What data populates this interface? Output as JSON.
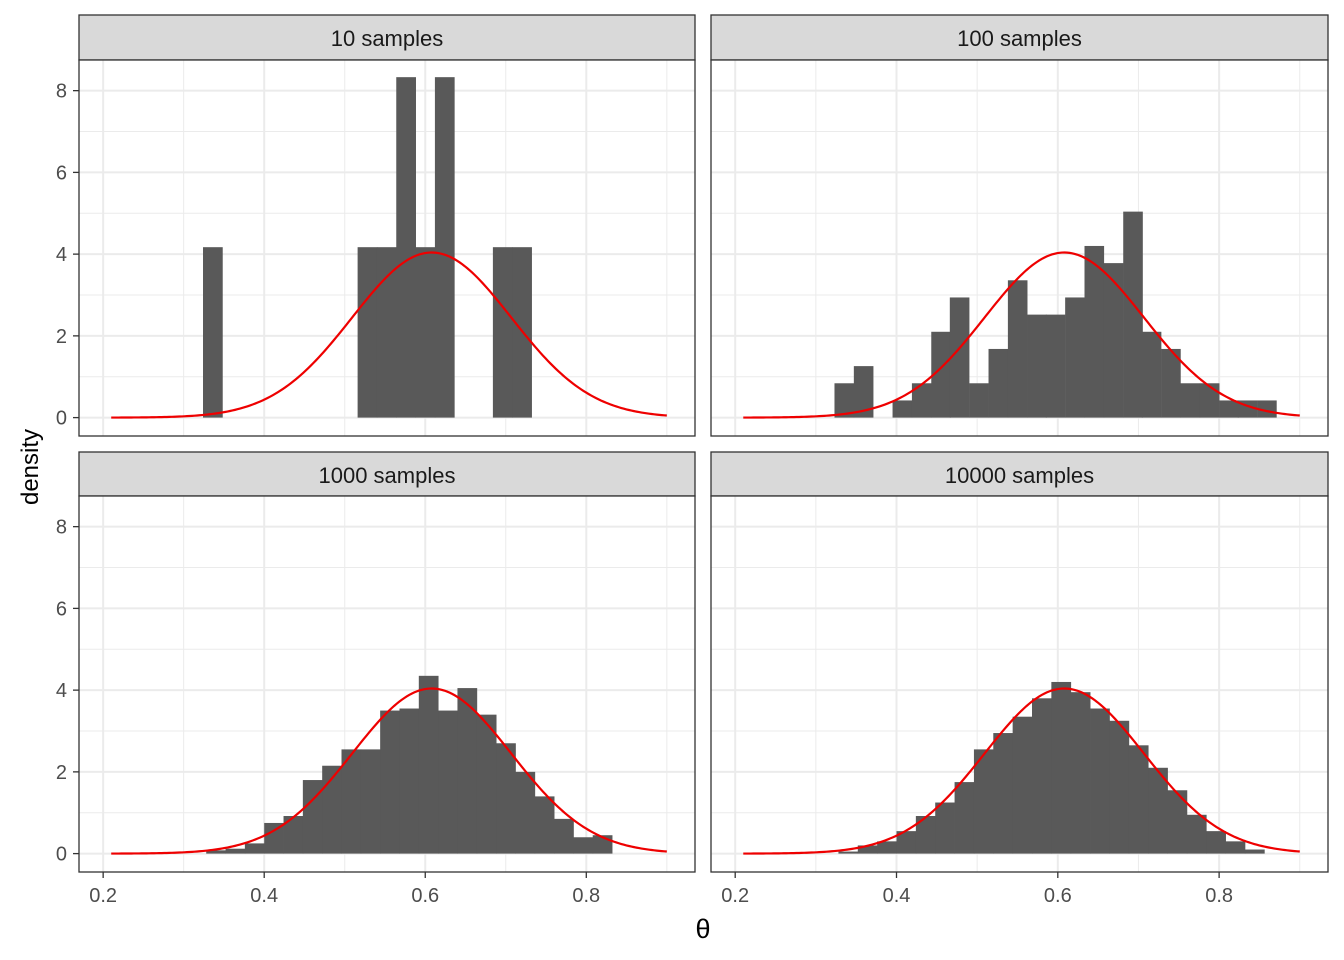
{
  "figure": {
    "xlabel": "θ",
    "ylabel": "density"
  },
  "colors": {
    "bar": "#595959",
    "curve": "#ee0000",
    "strip_fill": "#d9d9d9",
    "grid": "#ebebeb",
    "border": "#333333",
    "tick_text": "#4d4d4d"
  },
  "chart_data": [
    {
      "type": "bar",
      "panel": "10 samples",
      "title": "10 samples",
      "bin_width": 0.024,
      "bins": [
        [
          0.336,
          4.17
        ],
        [
          0.528,
          4.17
        ],
        [
          0.552,
          4.17
        ],
        [
          0.576,
          8.33
        ],
        [
          0.6,
          4.17
        ],
        [
          0.624,
          8.33
        ],
        [
          0.696,
          4.17
        ],
        [
          0.72,
          4.17
        ]
      ],
      "overlay": {
        "type": "line",
        "shape": "normal",
        "mean": 0.608,
        "peak_density": 4.04
      },
      "xlim": [
        0.17,
        0.935
      ],
      "ylim": [
        -0.45,
        8.75
      ],
      "xticks": [
        "0.2",
        "0.4",
        "0.6",
        "0.8"
      ],
      "yticks": [
        "0",
        "2",
        "4",
        "6",
        "8"
      ],
      "grid": true
    },
    {
      "type": "bar",
      "panel": "100 samples",
      "title": "100 samples",
      "bin_width": 0.0238,
      "bins": [
        [
          0.335,
          0.84
        ],
        [
          0.359,
          1.26
        ],
        [
          0.407,
          0.42
        ],
        [
          0.431,
          0.84
        ],
        [
          0.455,
          2.1
        ],
        [
          0.478,
          2.94
        ],
        [
          0.502,
          0.84
        ],
        [
          0.526,
          1.68
        ],
        [
          0.55,
          3.36
        ],
        [
          0.574,
          2.52
        ],
        [
          0.597,
          2.52
        ],
        [
          0.621,
          2.94
        ],
        [
          0.645,
          4.2
        ],
        [
          0.669,
          3.78
        ],
        [
          0.693,
          5.04
        ],
        [
          0.716,
          2.1
        ],
        [
          0.74,
          1.68
        ],
        [
          0.764,
          0.84
        ],
        [
          0.788,
          0.84
        ],
        [
          0.812,
          0.42
        ],
        [
          0.835,
          0.42
        ],
        [
          0.859,
          0.42
        ]
      ],
      "overlay": {
        "type": "line",
        "shape": "normal",
        "mean": 0.608,
        "peak_density": 4.04
      },
      "xlim": [
        0.17,
        0.935
      ],
      "ylim": [
        -0.45,
        8.75
      ],
      "xticks": [
        "0.2",
        "0.4",
        "0.6",
        "0.8"
      ],
      "yticks": [
        "0",
        "2",
        "4",
        "6",
        "8"
      ],
      "grid": true
    },
    {
      "type": "bar",
      "panel": "1000 samples",
      "title": "1000 samples",
      "bin_width": 0.024,
      "bins": [
        [
          0.34,
          0.08
        ],
        [
          0.364,
          0.12
        ],
        [
          0.388,
          0.25
        ],
        [
          0.412,
          0.75
        ],
        [
          0.436,
          0.92
        ],
        [
          0.46,
          1.8
        ],
        [
          0.484,
          2.15
        ],
        [
          0.508,
          2.55
        ],
        [
          0.532,
          2.55
        ],
        [
          0.556,
          3.5
        ],
        [
          0.58,
          3.55
        ],
        [
          0.604,
          4.35
        ],
        [
          0.628,
          3.5
        ],
        [
          0.652,
          4.05
        ],
        [
          0.676,
          3.4
        ],
        [
          0.7,
          2.7
        ],
        [
          0.724,
          2.0
        ],
        [
          0.748,
          1.4
        ],
        [
          0.772,
          0.85
        ],
        [
          0.796,
          0.4
        ],
        [
          0.82,
          0.45
        ]
      ],
      "overlay": {
        "type": "line",
        "shape": "normal",
        "mean": 0.608,
        "peak_density": 4.04
      },
      "xlim": [
        0.17,
        0.935
      ],
      "ylim": [
        -0.45,
        8.75
      ],
      "xticks": [
        "0.2",
        "0.4",
        "0.6",
        "0.8"
      ],
      "yticks": [
        "0",
        "2",
        "4",
        "6",
        "8"
      ],
      "grid": true
    },
    {
      "type": "bar",
      "panel": "10000 samples",
      "title": "10000 samples",
      "bin_width": 0.024,
      "bins": [
        [
          0.34,
          0.05
        ],
        [
          0.364,
          0.2
        ],
        [
          0.388,
          0.3
        ],
        [
          0.412,
          0.55
        ],
        [
          0.436,
          0.92
        ],
        [
          0.46,
          1.25
        ],
        [
          0.484,
          1.75
        ],
        [
          0.508,
          2.55
        ],
        [
          0.532,
          2.95
        ],
        [
          0.556,
          3.35
        ],
        [
          0.58,
          3.8
        ],
        [
          0.604,
          4.2
        ],
        [
          0.628,
          3.95
        ],
        [
          0.652,
          3.55
        ],
        [
          0.676,
          3.25
        ],
        [
          0.7,
          2.65
        ],
        [
          0.724,
          2.1
        ],
        [
          0.748,
          1.55
        ],
        [
          0.772,
          0.95
        ],
        [
          0.796,
          0.55
        ],
        [
          0.82,
          0.3
        ],
        [
          0.844,
          0.1
        ]
      ],
      "overlay": {
        "type": "line",
        "shape": "normal",
        "mean": 0.608,
        "peak_density": 4.04
      },
      "xlim": [
        0.17,
        0.935
      ],
      "ylim": [
        -0.45,
        8.75
      ],
      "xticks": [
        "0.2",
        "0.4",
        "0.6",
        "0.8"
      ],
      "yticks": [
        "0",
        "2",
        "4",
        "6",
        "8"
      ],
      "grid": true
    }
  ]
}
